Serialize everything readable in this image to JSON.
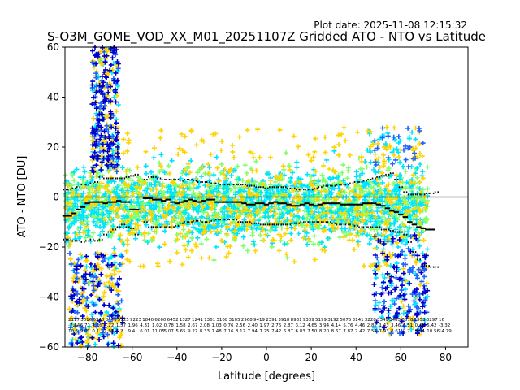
{
  "chart_data": {
    "type": "scatter",
    "plot_date": "Plot date: 2025-11-08 12:15:32",
    "title": "S-O3M_GOME_VOD_XX_M01_20251107Z Gridded ATO - NTO vs Latitude",
    "xlabel": "Latitude [degrees]",
    "ylabel": "ATO - NTO [DU]",
    "xlim": [
      -90,
      90
    ],
    "ylim": [
      -60,
      60
    ],
    "xticks": [
      -80,
      -60,
      -40,
      -20,
      0,
      20,
      40,
      60,
      80
    ],
    "yticks": [
      -60,
      -40,
      -20,
      0,
      20,
      40,
      60
    ],
    "zero_line": 0,
    "grid": false,
    "legend": "none",
    "marker": "+",
    "colors": {
      "dark_blue": "#0000cc",
      "blue": "#1e64ff",
      "cyan": "#00e5ff",
      "green": "#7fff6a",
      "yellow": "#ffd400",
      "black": "#000000"
    },
    "bin_centers": [
      -90,
      -88,
      -86,
      -84,
      -82,
      -80,
      -78,
      -76,
      -74,
      -72,
      -70,
      -68,
      -66,
      -64,
      -62,
      -60,
      -58,
      -56,
      -54,
      -52,
      -50,
      -48,
      -46,
      -44,
      -42,
      -40,
      -38,
      -36,
      -34,
      -32,
      -30,
      -28,
      -26,
      -24,
      -22,
      -20,
      -18,
      -16,
      -14,
      -12,
      -10,
      -8,
      -6,
      -4,
      -2,
      0,
      2,
      4,
      6,
      8,
      10,
      12,
      14,
      16,
      18,
      20,
      22,
      24,
      26,
      28,
      30,
      32,
      34,
      36,
      38,
      40,
      42,
      44,
      46,
      48,
      50,
      52,
      54,
      56,
      58,
      60,
      62,
      64,
      66,
      68,
      70,
      72,
      74,
      76
    ],
    "series": [
      {
        "name": "mean",
        "values": [
          -7.5,
          -7.5,
          -6.5,
          -5,
          -4,
          -2.5,
          -2,
          -2,
          -2,
          -2.5,
          -2,
          -2,
          -1.5,
          -2,
          -2,
          -5,
          -5,
          null,
          -0.5,
          -0.5,
          -1,
          -1,
          -1.5,
          -1,
          -2,
          -2.5,
          -2,
          -1.5,
          -1,
          -1.5,
          -2,
          -1.5,
          -1,
          -1,
          -2,
          -2,
          -2,
          -2,
          -2,
          -2,
          -2.5,
          -3,
          -3,
          -2.5,
          -2.5,
          -3,
          -2.5,
          -2,
          -2.5,
          -2.5,
          -3,
          -3.5,
          -3.5,
          -3,
          -2.5,
          -3,
          -3.5,
          -3,
          -2.5,
          -2.5,
          -2.5,
          -2.5,
          -3,
          -3,
          -3,
          -3,
          -3,
          -2.5,
          -2.5,
          -2.5,
          -3,
          -3.5,
          -4.5,
          -5.5,
          -6,
          -7,
          -8,
          -10,
          -11,
          -12,
          -12.5,
          -13,
          -13,
          null
        ]
      },
      {
        "name": "upper",
        "values": [
          3,
          3,
          3.5,
          4,
          5,
          5,
          5.5,
          6,
          8,
          7.5,
          7.5,
          7.5,
          7.5,
          7.5,
          8,
          8.5,
          9,
          null,
          7,
          8,
          8,
          7.5,
          7,
          7,
          7,
          7,
          6.5,
          7,
          7,
          6.5,
          6,
          6,
          6,
          5.5,
          5.5,
          5,
          5,
          5,
          5,
          5,
          5,
          4.5,
          4.5,
          4,
          4,
          3.5,
          4,
          4,
          4,
          4,
          3.5,
          3.5,
          3,
          3,
          3,
          3,
          3.5,
          4,
          4.5,
          4.5,
          4.5,
          5,
          5,
          5,
          5.5,
          6,
          6,
          6.5,
          7,
          7.5,
          8,
          8.5,
          9,
          9.5,
          7,
          4,
          2,
          1,
          1,
          1,
          1,
          1.5,
          1.5,
          2
        ]
      },
      {
        "name": "lower",
        "values": [
          -17,
          -17,
          -17.5,
          -17.5,
          -18,
          -17.5,
          -17,
          -17.5,
          -17,
          -15,
          -14,
          -13,
          -12,
          -11,
          -12,
          -12.5,
          -15,
          null,
          -10,
          -12,
          -12,
          -12,
          -12,
          -12,
          -12,
          -11.5,
          -10.5,
          -10,
          -10,
          -9.5,
          -9.5,
          -10,
          -10,
          -9.5,
          -9,
          -9,
          -9,
          -9,
          -9,
          -10,
          -10,
          -10,
          -10.5,
          -10.5,
          -11,
          -11,
          -11,
          -11,
          -11,
          -11,
          -11,
          -10.5,
          -10.5,
          -10,
          -10,
          -10,
          -10,
          -10,
          -10,
          -10,
          -10.5,
          -11,
          -11,
          -11,
          -11,
          -11.5,
          -12,
          -12,
          -12,
          -12,
          -12,
          -13,
          -13,
          -13.5,
          -14,
          -14,
          -15,
          -18,
          -22,
          -25,
          -27,
          -27.5,
          -28,
          -28
        ]
      }
    ],
    "table_rows": [
      [
        "2117",
        "3616",
        "6340",
        "8440",
        "5725",
        "9223",
        "1840",
        "6260",
        "6452",
        "1327",
        "1241",
        "1361",
        "3108",
        "3105",
        "2968",
        "9419",
        "2391",
        "3918",
        "8931",
        "9339",
        "5199",
        "3192",
        "5075",
        "3141",
        "3228",
        "3349",
        "3485",
        "3570",
        "1953",
        "3297",
        "16"
      ],
      [
        "-7.64",
        "6.71",
        "4.26",
        "4.22",
        "1.57",
        "1.96",
        "4.31",
        "1.02",
        "0.78",
        "1.58",
        "2.67",
        "2.08",
        "1.03",
        "0.76",
        "2.56",
        "2.40",
        "1.97",
        "2.76",
        "2.87",
        "3.12",
        "4.65",
        "3.94",
        "4.14",
        "5.76",
        "4.46",
        "2.82",
        "1.43",
        "3.46",
        "6.51",
        "0.48",
        "5.42",
        "-3.32"
      ],
      [
        "10.6",
        "9.01",
        "0.1",
        "2.83",
        "5.2",
        "9.4",
        "6.01",
        "11.05",
        "5.07",
        "5.65",
        "9.27",
        "8.33",
        "7.48",
        "7.16",
        "8.12",
        "7.94",
        "7.25",
        "7.42",
        "6.87",
        "6.83",
        "7.50",
        "8.20",
        "8.67",
        "7.87",
        "7.42",
        "7.54",
        "7.93",
        "8.61",
        "9.2",
        "9.94",
        "10.56",
        "14.79"
      ]
    ]
  }
}
